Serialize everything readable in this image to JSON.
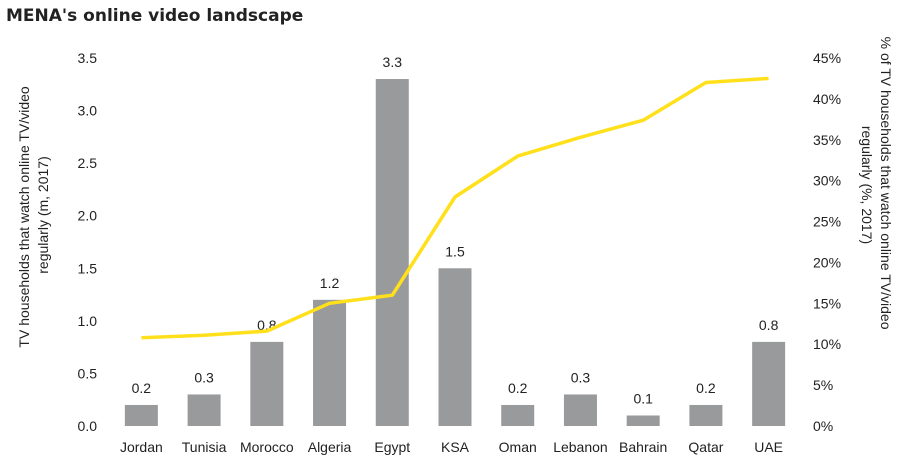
{
  "chart_data": {
    "type": "bar",
    "title": "MENA's online video landscape",
    "categories": [
      "Jordan",
      "Tunisia",
      "Morocco",
      "Algeria",
      "Egypt",
      "KSA",
      "Oman",
      "Lebanon",
      "Bahrain",
      "Qatar",
      "UAE"
    ],
    "series": [
      {
        "name": "",
        "type": "bar",
        "axis": "left",
        "values": [
          0.2,
          0.3,
          0.8,
          1.2,
          3.3,
          1.5,
          0.2,
          0.3,
          0.1,
          0.2,
          0.8
        ],
        "labels": [
          "0.2",
          "0.3",
          "0.8",
          "1.2",
          "3.3",
          "1.5",
          "0.2",
          "0.3",
          "0.1",
          "0.2",
          "0.8"
        ],
        "color": "#999a9c"
      },
      {
        "name": "",
        "type": "line",
        "axis": "right",
        "values": [
          10.8,
          11.1,
          11.6,
          15.0,
          16.0,
          28.0,
          33.0,
          35.3,
          37.4,
          42.0,
          42.5
        ],
        "color": "#ffe01a"
      }
    ],
    "ylabel_left": "TV households that watch online TV/video regularly (m, 2017)",
    "ylabel_right": "% of TV households that watch online TV/video regularly (%, 2017)",
    "ylabel_left_lines": [
      "TV households that watch online TV/video",
      "regularly (m, 2017)"
    ],
    "ylabel_right_lines": [
      "% of TV households that watch online TV/video",
      "regularly (%, 2017)"
    ],
    "ylim_left": [
      0,
      3.5
    ],
    "yticks_left": [
      "0.0",
      "0.5",
      "1.0",
      "1.5",
      "2.0",
      "2.5",
      "3.0",
      "3.5"
    ],
    "ylim_right": [
      0,
      45
    ],
    "yticks_right": [
      "0%",
      "5%",
      "10%",
      "15%",
      "20%",
      "25%",
      "30%",
      "35%",
      "40%",
      "45%"
    ],
    "grid": false,
    "legend": "none"
  }
}
